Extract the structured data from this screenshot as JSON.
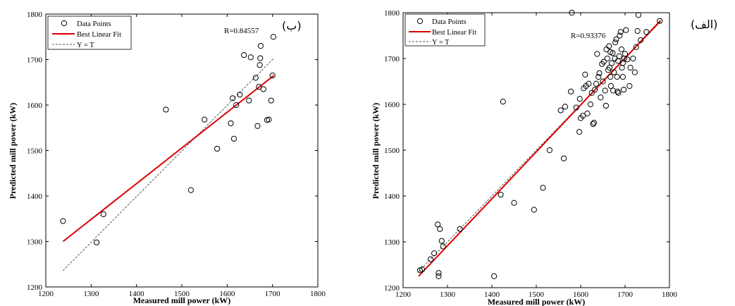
{
  "chart_data": [
    {
      "type": "scatter",
      "panel_label": "(ب)",
      "xlabel": "Measured mill power (kW)",
      "ylabel": "Predicted mill power (kW)",
      "xlim": [
        1200,
        1800
      ],
      "ylim": [
        1200,
        1800
      ],
      "xticks": [
        1200,
        1300,
        1400,
        1500,
        1600,
        1700,
        1800
      ],
      "yticks": [
        1200,
        1300,
        1400,
        1500,
        1600,
        1700,
        1800
      ],
      "r_label": "R=0.84557",
      "legend": [
        "Data Points",
        "Best Linear Fit",
        "Y = T"
      ],
      "legend_position": "top-left",
      "colors": {
        "points": "#000000",
        "fit": "#e00000",
        "yt": "#555555"
      },
      "best_fit": {
        "x": [
          1238,
          1703
        ],
        "y": [
          1300,
          1665
        ]
      },
      "identity": {
        "x": [
          1238,
          1703
        ],
        "y": [
          1236,
          1703
        ]
      },
      "series": [
        {
          "points": [
            [
              1238,
              1345
            ],
            [
              1312,
              1298
            ],
            [
              1327,
              1360
            ],
            [
              1465,
              1590
            ],
            [
              1520,
              1413
            ],
            [
              1550,
              1568
            ],
            [
              1578,
              1504
            ],
            [
              1608,
              1560
            ],
            [
              1612,
              1615
            ],
            [
              1615,
              1526
            ],
            [
              1620,
              1600
            ],
            [
              1628,
              1623
            ],
            [
              1637,
              1710
            ],
            [
              1648,
              1610
            ],
            [
              1652,
              1705
            ],
            [
              1663,
              1660
            ],
            [
              1667,
              1554
            ],
            [
              1670,
              1640
            ],
            [
              1672,
              1688
            ],
            [
              1673,
              1703
            ],
            [
              1674,
              1730
            ],
            [
              1680,
              1635
            ],
            [
              1688,
              1567
            ],
            [
              1692,
              1568
            ],
            [
              1697,
              1610
            ],
            [
              1700,
              1665
            ],
            [
              1702,
              1750
            ]
          ]
        }
      ]
    },
    {
      "type": "scatter",
      "panel_label": "(الف)",
      "xlabel": "Measured mill power (kW)",
      "ylabel": "Predicted mill power (kW)",
      "xlim": [
        1200,
        1800
      ],
      "ylim": [
        1200,
        1800
      ],
      "xticks": [
        1200,
        1300,
        1400,
        1500,
        1600,
        1700,
        1800
      ],
      "yticks": [
        1200,
        1300,
        1400,
        1500,
        1600,
        1700,
        1800
      ],
      "r_label": "R=0.93376",
      "legend": [
        "Data Points",
        "Best Linear Fit",
        "Y = T"
      ],
      "legend_position": "top-left",
      "colors": {
        "points": "#000000",
        "fit": "#e00000",
        "yt": "#555555"
      },
      "best_fit": {
        "x": [
          1235,
          1780
        ],
        "y": [
          1225,
          1783
        ]
      },
      "identity": {
        "x": [
          1235,
          1780
        ],
        "y": [
          1235,
          1780
        ]
      },
      "series": [
        {
          "points": [
            [
              1238,
              1238
            ],
            [
              1243,
              1240
            ],
            [
              1262,
              1262
            ],
            [
              1270,
              1275
            ],
            [
              1278,
              1338
            ],
            [
              1280,
              1225
            ],
            [
              1280,
              1232
            ],
            [
              1283,
              1328
            ],
            [
              1287,
              1302
            ],
            [
              1290,
              1290
            ],
            [
              1328,
              1328
            ],
            [
              1420,
              1403
            ],
            [
              1425,
              1606
            ],
            [
              1405,
              1225
            ],
            [
              1450,
              1385
            ],
            [
              1495,
              1370
            ],
            [
              1515,
              1418
            ],
            [
              1530,
              1500
            ],
            [
              1555,
              1587
            ],
            [
              1562,
              1482
            ],
            [
              1565,
              1595
            ],
            [
              1578,
              1628
            ],
            [
              1580,
              1800
            ],
            [
              1590,
              1593
            ],
            [
              1597,
              1540
            ],
            [
              1598,
              1612
            ],
            [
              1600,
              1570
            ],
            [
              1605,
              1575
            ],
            [
              1607,
              1635
            ],
            [
              1610,
              1665
            ],
            [
              1612,
              1640
            ],
            [
              1615,
              1580
            ],
            [
              1618,
              1645
            ],
            [
              1622,
              1600
            ],
            [
              1625,
              1625
            ],
            [
              1628,
              1557
            ],
            [
              1630,
              1560
            ],
            [
              1632,
              1632
            ],
            [
              1635,
              1645
            ],
            [
              1637,
              1710
            ],
            [
              1640,
              1660
            ],
            [
              1642,
              1668
            ],
            [
              1645,
              1615
            ],
            [
              1648,
              1688
            ],
            [
              1650,
              1650
            ],
            [
              1652,
              1693
            ],
            [
              1655,
              1630
            ],
            [
              1657,
              1597
            ],
            [
              1658,
              1720
            ],
            [
              1660,
              1700
            ],
            [
              1662,
              1675
            ],
            [
              1664,
              1727
            ],
            [
              1665,
              1680
            ],
            [
              1667,
              1660
            ],
            [
              1668,
              1640
            ],
            [
              1670,
              1690
            ],
            [
              1672,
              1712
            ],
            [
              1673,
              1630
            ],
            [
              1675,
              1670
            ],
            [
              1677,
              1700
            ],
            [
              1678,
              1735
            ],
            [
              1680,
              1742
            ],
            [
              1682,
              1660
            ],
            [
              1684,
              1695
            ],
            [
              1685,
              1625
            ],
            [
              1687,
              1705
            ],
            [
              1688,
              1750
            ],
            [
              1690,
              1758
            ],
            [
              1692,
              1720
            ],
            [
              1693,
              1680
            ],
            [
              1695,
              1690
            ],
            [
              1697,
              1632
            ],
            [
              1698,
              1700
            ],
            [
              1700,
              1710
            ],
            [
              1702,
              1762
            ],
            [
              1705,
              1698
            ],
            [
              1710,
              1640
            ],
            [
              1712,
              1680
            ],
            [
              1718,
              1700
            ],
            [
              1722,
              1670
            ],
            [
              1725,
              1725
            ],
            [
              1728,
              1760
            ],
            [
              1730,
              1795
            ],
            [
              1735,
              1740
            ],
            [
              1748,
              1758
            ],
            [
              1778,
              1782
            ],
            [
              1695,
              1660
            ],
            [
              1683,
              1628
            ],
            [
              1667,
              1714
            ]
          ]
        }
      ]
    }
  ]
}
